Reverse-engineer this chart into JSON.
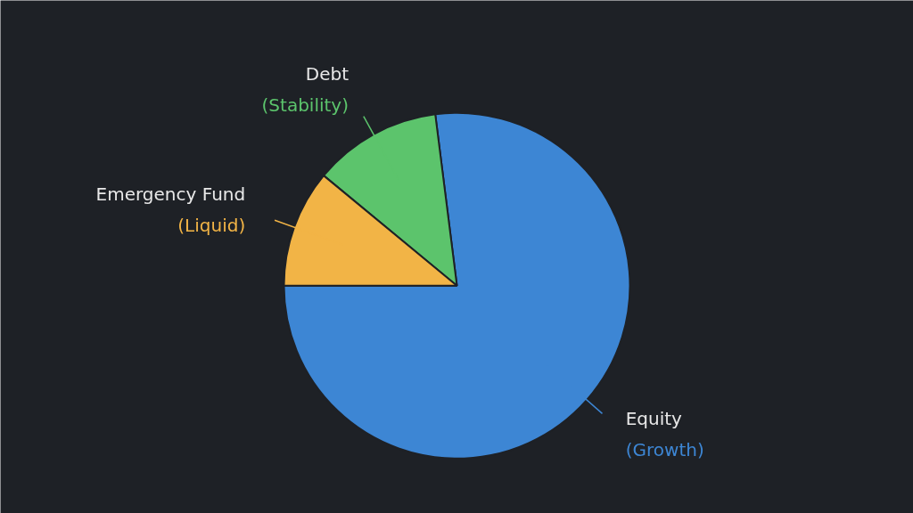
{
  "chart_data": {
    "type": "pie",
    "categories": [
      "Equity\n(Growth)",
      "Debt\n(Stability)",
      "Emergency Fund\n(Liquid)"
    ],
    "values": [
      77,
      12,
      11
    ],
    "colors": [
      "#3d86d4",
      "#5cc46c",
      "#f2b446"
    ]
  }
}
